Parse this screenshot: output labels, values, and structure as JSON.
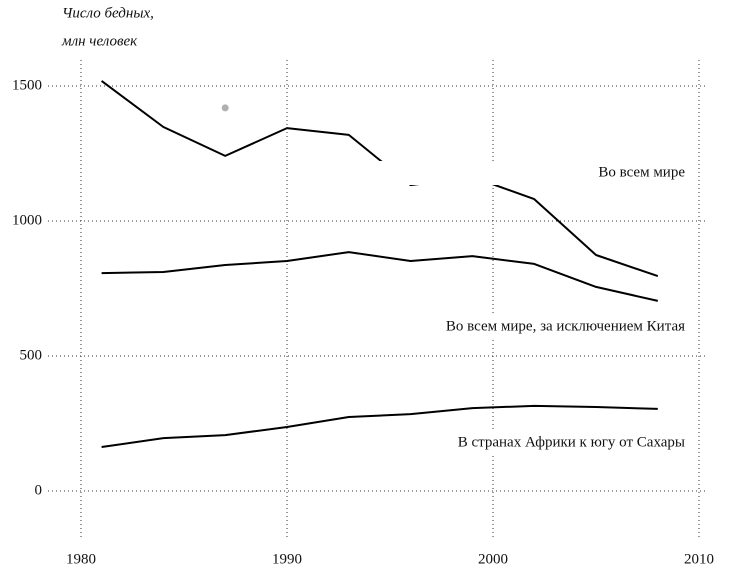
{
  "chart_data": {
    "type": "line",
    "ylabel": [
      "Число бедных,",
      "млн человек"
    ],
    "x": [
      1981,
      1984,
      1987,
      1990,
      1993,
      1996,
      1999,
      2002,
      2005,
      2008
    ],
    "series": [
      {
        "name": "Во всем мире",
        "color": "#000000",
        "values": [
          1519,
          1348,
          1241,
          1344,
          1319,
          1133,
          1163,
          1081,
          874,
          796
        ]
      },
      {
        "name": "Во всем мире, за исключением Китая",
        "color": "#000000",
        "values": [
          807,
          811,
          837,
          852,
          885,
          852,
          870,
          841,
          756,
          704
        ]
      },
      {
        "name": "В странах Африки к югу от Сахары",
        "color": "#000000",
        "values": [
          163,
          196,
          207,
          237,
          274,
          285,
          307,
          315,
          311,
          304
        ]
      }
    ],
    "marker": {
      "x": 1987,
      "y": 1419,
      "color": "#b0b0b0"
    },
    "xlim": [
      1980,
      2010
    ],
    "ylim": [
      0,
      1500
    ],
    "xticks": [
      1980,
      1990,
      2000,
      2010
    ],
    "yticks": [
      0,
      500,
      1000,
      1500
    ],
    "grid": true
  }
}
